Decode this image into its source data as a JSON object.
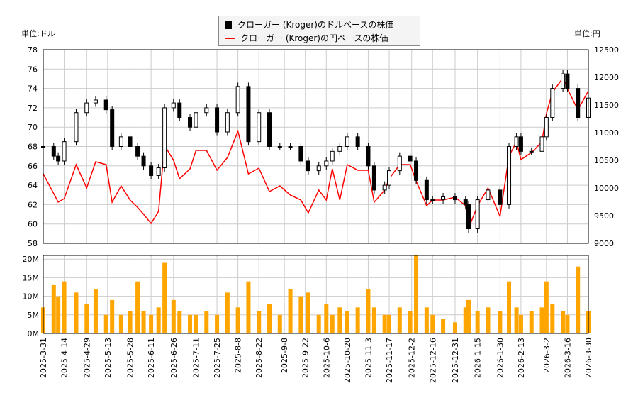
{
  "legend": {
    "usd": "クローガー (Kroger)のドルベースの株価",
    "jpy": "クローガー (Kroger)の円ベースの株価"
  },
  "unit_left": "単位:ドル",
  "unit_right": "単位:円",
  "colors": {
    "usd": "#000000",
    "jpy": "#ff0000",
    "volume": "#ffa500",
    "grid": "#cccccc"
  },
  "chart_data": [
    {
      "type": "candlestick+line",
      "ylim_left": [
        58,
        78
      ],
      "yticks_left": [
        58,
        60,
        62,
        64,
        66,
        68,
        70,
        72,
        74,
        76,
        78
      ],
      "ylim_right": [
        9000,
        12500
      ],
      "yticks_right": [
        9000,
        9500,
        10000,
        10500,
        11000,
        11500,
        12000,
        12500
      ],
      "grid": true,
      "legend_position": "top-center"
    },
    {
      "type": "bar",
      "ylim": [
        0,
        21
      ],
      "yticks": [
        0,
        5,
        10,
        15,
        20
      ],
      "ytick_labels": [
        "0M",
        "5M",
        "10M",
        "15M",
        "20M"
      ],
      "grid": true
    }
  ],
  "xticks": [
    "2025-3-31",
    "2025-4-14",
    "2025-4-29",
    "2025-5-13",
    "2025-5-28",
    "2025-6-11",
    "2025-6-26",
    "2025-7-11",
    "2025-7-25",
    "2025-8-8",
    "2025-8-22",
    "2025-9-8",
    "2025-9-22",
    "2025-10-6",
    "2025-10-20",
    "2025-11-3",
    "2025-11-17",
    "2025-12-2",
    "2025-12-16",
    "2025-12-31",
    "2026-1-15",
    "2026-1-30",
    "2026-2-13",
    "2026-3-2",
    "2026-3-16",
    "2026-3-30"
  ],
  "series": {
    "columns": [
      "date",
      "usd_close",
      "jpy_close",
      "volume_m"
    ],
    "rows": [
      [
        "2025-03-31",
        68,
        10256,
        7
      ],
      [
        "2025-04-07",
        67,
        9900,
        13
      ],
      [
        "2025-04-10",
        66.5,
        9744,
        10
      ],
      [
        "2025-04-14",
        68.5,
        9808,
        14
      ],
      [
        "2025-04-22",
        71.5,
        10423,
        11
      ],
      [
        "2025-04-29",
        72.5,
        10000,
        8
      ],
      [
        "2025-05-05",
        72.8,
        10474,
        12
      ],
      [
        "2025-05-12",
        71.8,
        10423,
        5
      ],
      [
        "2025-05-16",
        68,
        9744,
        9
      ],
      [
        "2025-05-22",
        69,
        10038,
        5
      ],
      [
        "2025-05-28",
        68,
        9782,
        6
      ],
      [
        "2025-06-02",
        67,
        9650,
        14
      ],
      [
        "2025-06-06",
        66,
        9526,
        6
      ],
      [
        "2025-06-11",
        65,
        9359,
        5
      ],
      [
        "2025-06-16",
        65.8,
        9577,
        7
      ],
      [
        "2025-06-20",
        72,
        10769,
        19
      ],
      [
        "2025-06-26",
        72.5,
        10500,
        9
      ],
      [
        "2025-06-30",
        71,
        10167,
        6
      ],
      [
        "2025-07-07",
        70,
        10346,
        5
      ],
      [
        "2025-07-11",
        71.5,
        10679,
        5
      ],
      [
        "2025-07-18",
        72,
        10679,
        6
      ],
      [
        "2025-07-25",
        69.5,
        10321,
        5
      ],
      [
        "2025-08-01",
        71.5,
        10551,
        11
      ],
      [
        "2025-08-08",
        74.2,
        11026,
        7
      ],
      [
        "2025-08-15",
        68.5,
        10256,
        14
      ],
      [
        "2025-08-22",
        71.5,
        10359,
        6
      ],
      [
        "2025-08-29",
        68,
        9936,
        8
      ],
      [
        "2025-09-05",
        68,
        10038,
        5
      ],
      [
        "2025-09-12",
        68,
        9872,
        12
      ],
      [
        "2025-09-19",
        66.5,
        9782,
        10
      ],
      [
        "2025-09-24",
        65.5,
        9551,
        11
      ],
      [
        "2025-10-01",
        66,
        9962,
        5
      ],
      [
        "2025-10-06",
        66.5,
        9782,
        8
      ],
      [
        "2025-10-10",
        67.5,
        10346,
        5
      ],
      [
        "2025-10-15",
        68,
        9782,
        7
      ],
      [
        "2025-10-20",
        69,
        10423,
        6
      ],
      [
        "2025-10-27",
        68,
        10321,
        7
      ],
      [
        "2025-11-03",
        66,
        10321,
        12
      ],
      [
        "2025-11-07",
        63.5,
        9744,
        7
      ],
      [
        "2025-11-14",
        64,
        9962,
        5
      ],
      [
        "2025-11-17",
        65.5,
        10167,
        5
      ],
      [
        "2025-11-24",
        67,
        10423,
        7
      ],
      [
        "2025-12-01",
        66.5,
        10423,
        6
      ],
      [
        "2025-12-05",
        64.5,
        10128,
        21
      ],
      [
        "2025-12-12",
        62.5,
        9680,
        7
      ],
      [
        "2025-12-16",
        62.5,
        9782,
        5
      ],
      [
        "2025-12-23",
        62.8,
        9782,
        4
      ],
      [
        "2025-12-31",
        62.5,
        9834,
        3
      ],
      [
        "2026-01-07",
        62,
        9680,
        7
      ],
      [
        "2026-01-09",
        59.5,
        9269,
        9
      ],
      [
        "2026-01-15",
        62.5,
        9680,
        6
      ],
      [
        "2026-01-22",
        63.5,
        10000,
        7
      ],
      [
        "2026-01-30",
        62,
        9487,
        6
      ],
      [
        "2026-02-05",
        68,
        10577,
        14
      ],
      [
        "2026-02-10",
        69,
        10833,
        7
      ],
      [
        "2026-02-13",
        67.5,
        10513,
        5
      ],
      [
        "2026-02-20",
        67.5,
        10641,
        6
      ],
      [
        "2026-02-27",
        69,
        10833,
        7
      ],
      [
        "2026-03-02",
        71,
        11346,
        14
      ],
      [
        "2026-03-06",
        74,
        11731,
        8
      ],
      [
        "2026-03-13",
        75.5,
        11987,
        6
      ],
      [
        "2026-03-16",
        74,
        11795,
        5
      ],
      [
        "2026-03-23",
        71,
        11410,
        18
      ],
      [
        "2026-03-30",
        73,
        11756,
        6
      ]
    ]
  }
}
